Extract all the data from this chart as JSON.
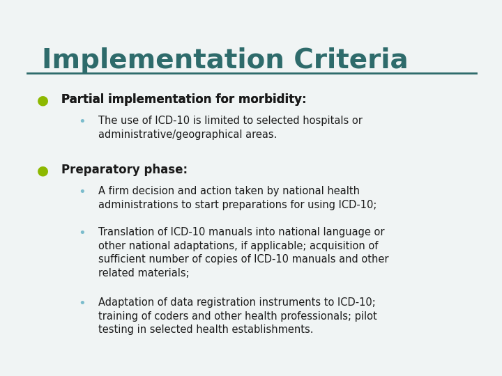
{
  "title": "Implementation Criteria",
  "title_color": "#2E6B6B",
  "title_fontsize": 28,
  "title_bold": true,
  "line_color": "#2E6B6B",
  "background_color": "#F0F4F4",
  "border_color": "#4A8A8A",
  "bullet_color": "#8DB800",
  "sub_bullet_color": "#7BBCCC",
  "text_color": "#1A1A1A",
  "bullet1_label": "Partial implementation for morbidity:",
  "bullet1_bold_part": "Partial implementation for morbidity",
  "bullet1_sub": [
    "The use of ICD‑10 is limited to selected hospitals or\nadministrative/geographical areas."
  ],
  "bullet2_label": "Preparatory phase:",
  "bullet2_bold_part": "Preparatory phase",
  "bullet2_sub": [
    "A firm decision and action taken by national health\nadministrations to start preparations for using ICD‑10;",
    "Translation of ICD‑10 manuals into national language or\nother national adaptations, if applicable; acquisition of\nsufficient number of copies of ICD‑10 manuals and other\nrelated materials;",
    "Adaptation of data registration instruments to ICD‑10;\ntraining of coders and other health professionals; pilot\ntesting in selected health establishments."
  ]
}
